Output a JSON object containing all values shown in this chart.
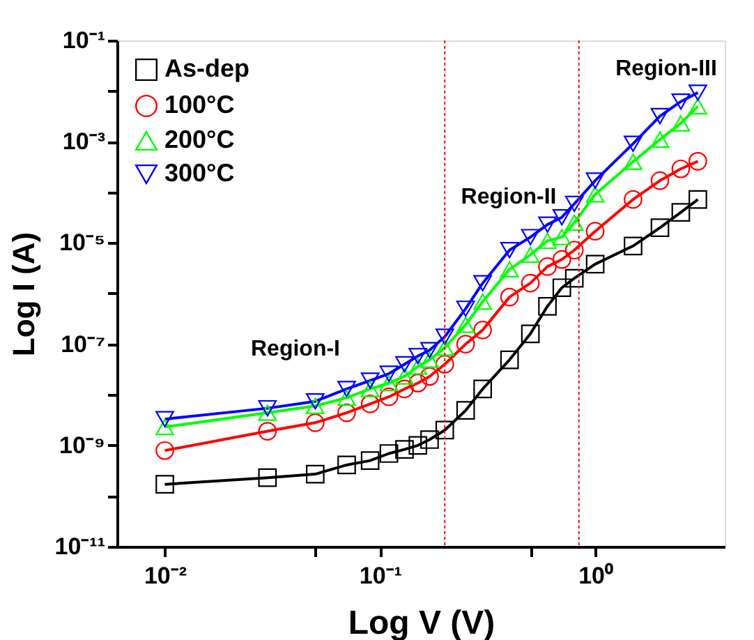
{
  "chart_data": {
    "type": "line",
    "xlabel": "Log V (V)",
    "ylabel": "Log I (A)",
    "log": "xy",
    "grid": false,
    "legend": "top left",
    "x": [
      0.01,
      0.03,
      0.05,
      0.07,
      0.09,
      0.11,
      0.13,
      0.15,
      0.17,
      0.2,
      0.25,
      0.3,
      0.4,
      0.5,
      0.6,
      0.7,
      0.8,
      1.0,
      1.5,
      2.0,
      2.5,
      3.0
    ],
    "series": [
      {
        "name": "As-dep",
        "color": "#000000",
        "marker": "square",
        "values": [
          1.7e-10,
          2.3e-10,
          2.7e-10,
          4.1e-10,
          5e-10,
          6.9e-10,
          8.3e-10,
          1e-09,
          1.3e-09,
          2e-09,
          4.9e-09,
          1.3e-08,
          4.9e-08,
          1.6e-07,
          5.6e-07,
          1.3e-06,
          2e-06,
          3.8e-06,
          8.7e-06,
          2e-05,
          4e-05,
          7.2e-05
        ]
      },
      {
        "name": "100°C",
        "color": "#ff0000",
        "marker": "circle",
        "values": [
          7.9e-10,
          1.9e-09,
          2.8e-09,
          4.4e-09,
          6.6e-09,
          9.1e-09,
          1.3e-08,
          1.7e-08,
          2.3e-08,
          4e-08,
          1e-07,
          1.9e-07,
          8.5e-07,
          1.6e-06,
          3.4e-06,
          4.7e-06,
          7.2e-06,
          1.7e-05,
          7.2e-05,
          0.00017,
          0.00029,
          0.00041
        ]
      },
      {
        "name": "200°C",
        "color": "#00ff00",
        "marker": "triangle",
        "values": [
          2.3e-09,
          4.4e-09,
          6e-09,
          8.7e-09,
          1.3e-08,
          1.7e-08,
          2.3e-08,
          3.6e-08,
          4.9e-08,
          8.5e-08,
          2.4e-07,
          6.9e-07,
          3e-06,
          5.8e-06,
          1.1e-05,
          1.3e-05,
          2.5e-05,
          9.1e-05,
          0.0004,
          0.0011,
          0.0023,
          0.005
        ]
      },
      {
        "name": "300°C",
        "color": "#0000ff",
        "marker": "triangle-down",
        "values": [
          3.3e-09,
          5.4e-09,
          7.4e-09,
          1.3e-08,
          1.9e-08,
          2.6e-08,
          4e-08,
          5.8e-08,
          7.6e-08,
          1.4e-07,
          5e-07,
          1.6e-06,
          7.2e-06,
          1.3e-05,
          2.3e-05,
          3.2e-05,
          5.9e-05,
          0.00017,
          0.00091,
          0.0032,
          0.0062,
          0.0093
        ]
      }
    ],
    "xlim": [
      0.006,
      4
    ],
    "xticks": [
      {
        "value": 0.01,
        "label": "10⁻²"
      },
      {
        "value": 0.05,
        "label": null
      },
      {
        "value": 0.1,
        "label": "10⁻¹"
      },
      {
        "value": 0.5,
        "label": null
      },
      {
        "value": 1,
        "label": "10⁰"
      }
    ],
    "ylim": [
      1e-11,
      0.1
    ],
    "yticks": [
      {
        "value": 1e-11,
        "label": "10⁻¹¹"
      },
      {
        "value": 1e-10,
        "label": null
      },
      {
        "value": 1e-09,
        "label": "10⁻⁹"
      },
      {
        "value": 1e-08,
        "label": null
      },
      {
        "value": 1e-07,
        "label": "10⁻⁷"
      },
      {
        "value": 1e-06,
        "label": null
      },
      {
        "value": 1e-05,
        "label": "10⁻⁵"
      },
      {
        "value": 0.0001,
        "label": null
      },
      {
        "value": 0.001,
        "label": "10⁻³"
      },
      {
        "value": 0.01,
        "label": null
      },
      {
        "value": 0.1,
        "label": "10⁻¹"
      }
    ],
    "ref_lines": [
      {
        "axis": "x",
        "value": 0.2,
        "color": "#ff0000",
        "line_style": "dotted"
      },
      {
        "axis": "x",
        "value": 0.84,
        "color": "#ff0000",
        "line_style": "dotted"
      }
    ],
    "annotations": [
      "Region-I",
      "Region-II",
      "Region-III"
    ]
  }
}
